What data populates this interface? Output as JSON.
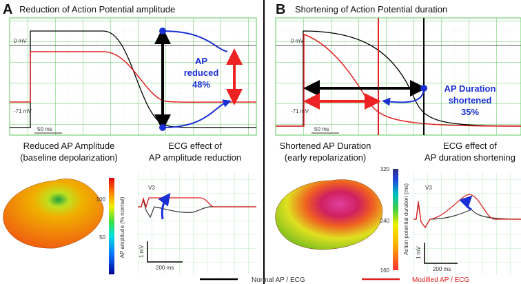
{
  "panels": [
    {
      "label": "A",
      "title": "Reduction of Action Potential amplitude",
      "traces": {
        "zero_label": "0 mV",
        "rest_label": "-71 mV",
        "time_scale": "50 ms"
      },
      "annotation": [
        "AP",
        "reduced",
        "48%"
      ],
      "map": {
        "title": [
          "Reduced AP Amplitude",
          "(baseline depolarization)"
        ],
        "colorbar_label": "AP amplitude (% normal)",
        "colorbar_ticks": [
          "100",
          "50"
        ]
      },
      "ecg": {
        "title": [
          "ECG effect of",
          "AP amplitude reduction"
        ],
        "lead": "V3",
        "voltage_scale": "1 mV",
        "time_scale": "200 ms"
      }
    },
    {
      "label": "B",
      "title": "Shortening of Action Potential duration",
      "traces": {
        "zero_label": "0 mV",
        "rest_label": "-71 mV",
        "time_scale": "50 ms"
      },
      "annotation": [
        "AP Duration",
        "shortened",
        "35%"
      ],
      "map": {
        "title": [
          "Shortened AP Duration",
          "(early repolarization)"
        ],
        "colorbar_label": "Action potential duration (ms)",
        "colorbar_ticks": [
          "320",
          "240",
          "160"
        ]
      },
      "ecg": {
        "title": [
          "ECG effect of",
          "AP duration shortening"
        ],
        "lead": "V3",
        "voltage_scale": "1 mV",
        "time_scale": "200 ms"
      }
    }
  ],
  "legend": [
    "Normal AP / ECG",
    "Modified AP / ECG"
  ]
}
